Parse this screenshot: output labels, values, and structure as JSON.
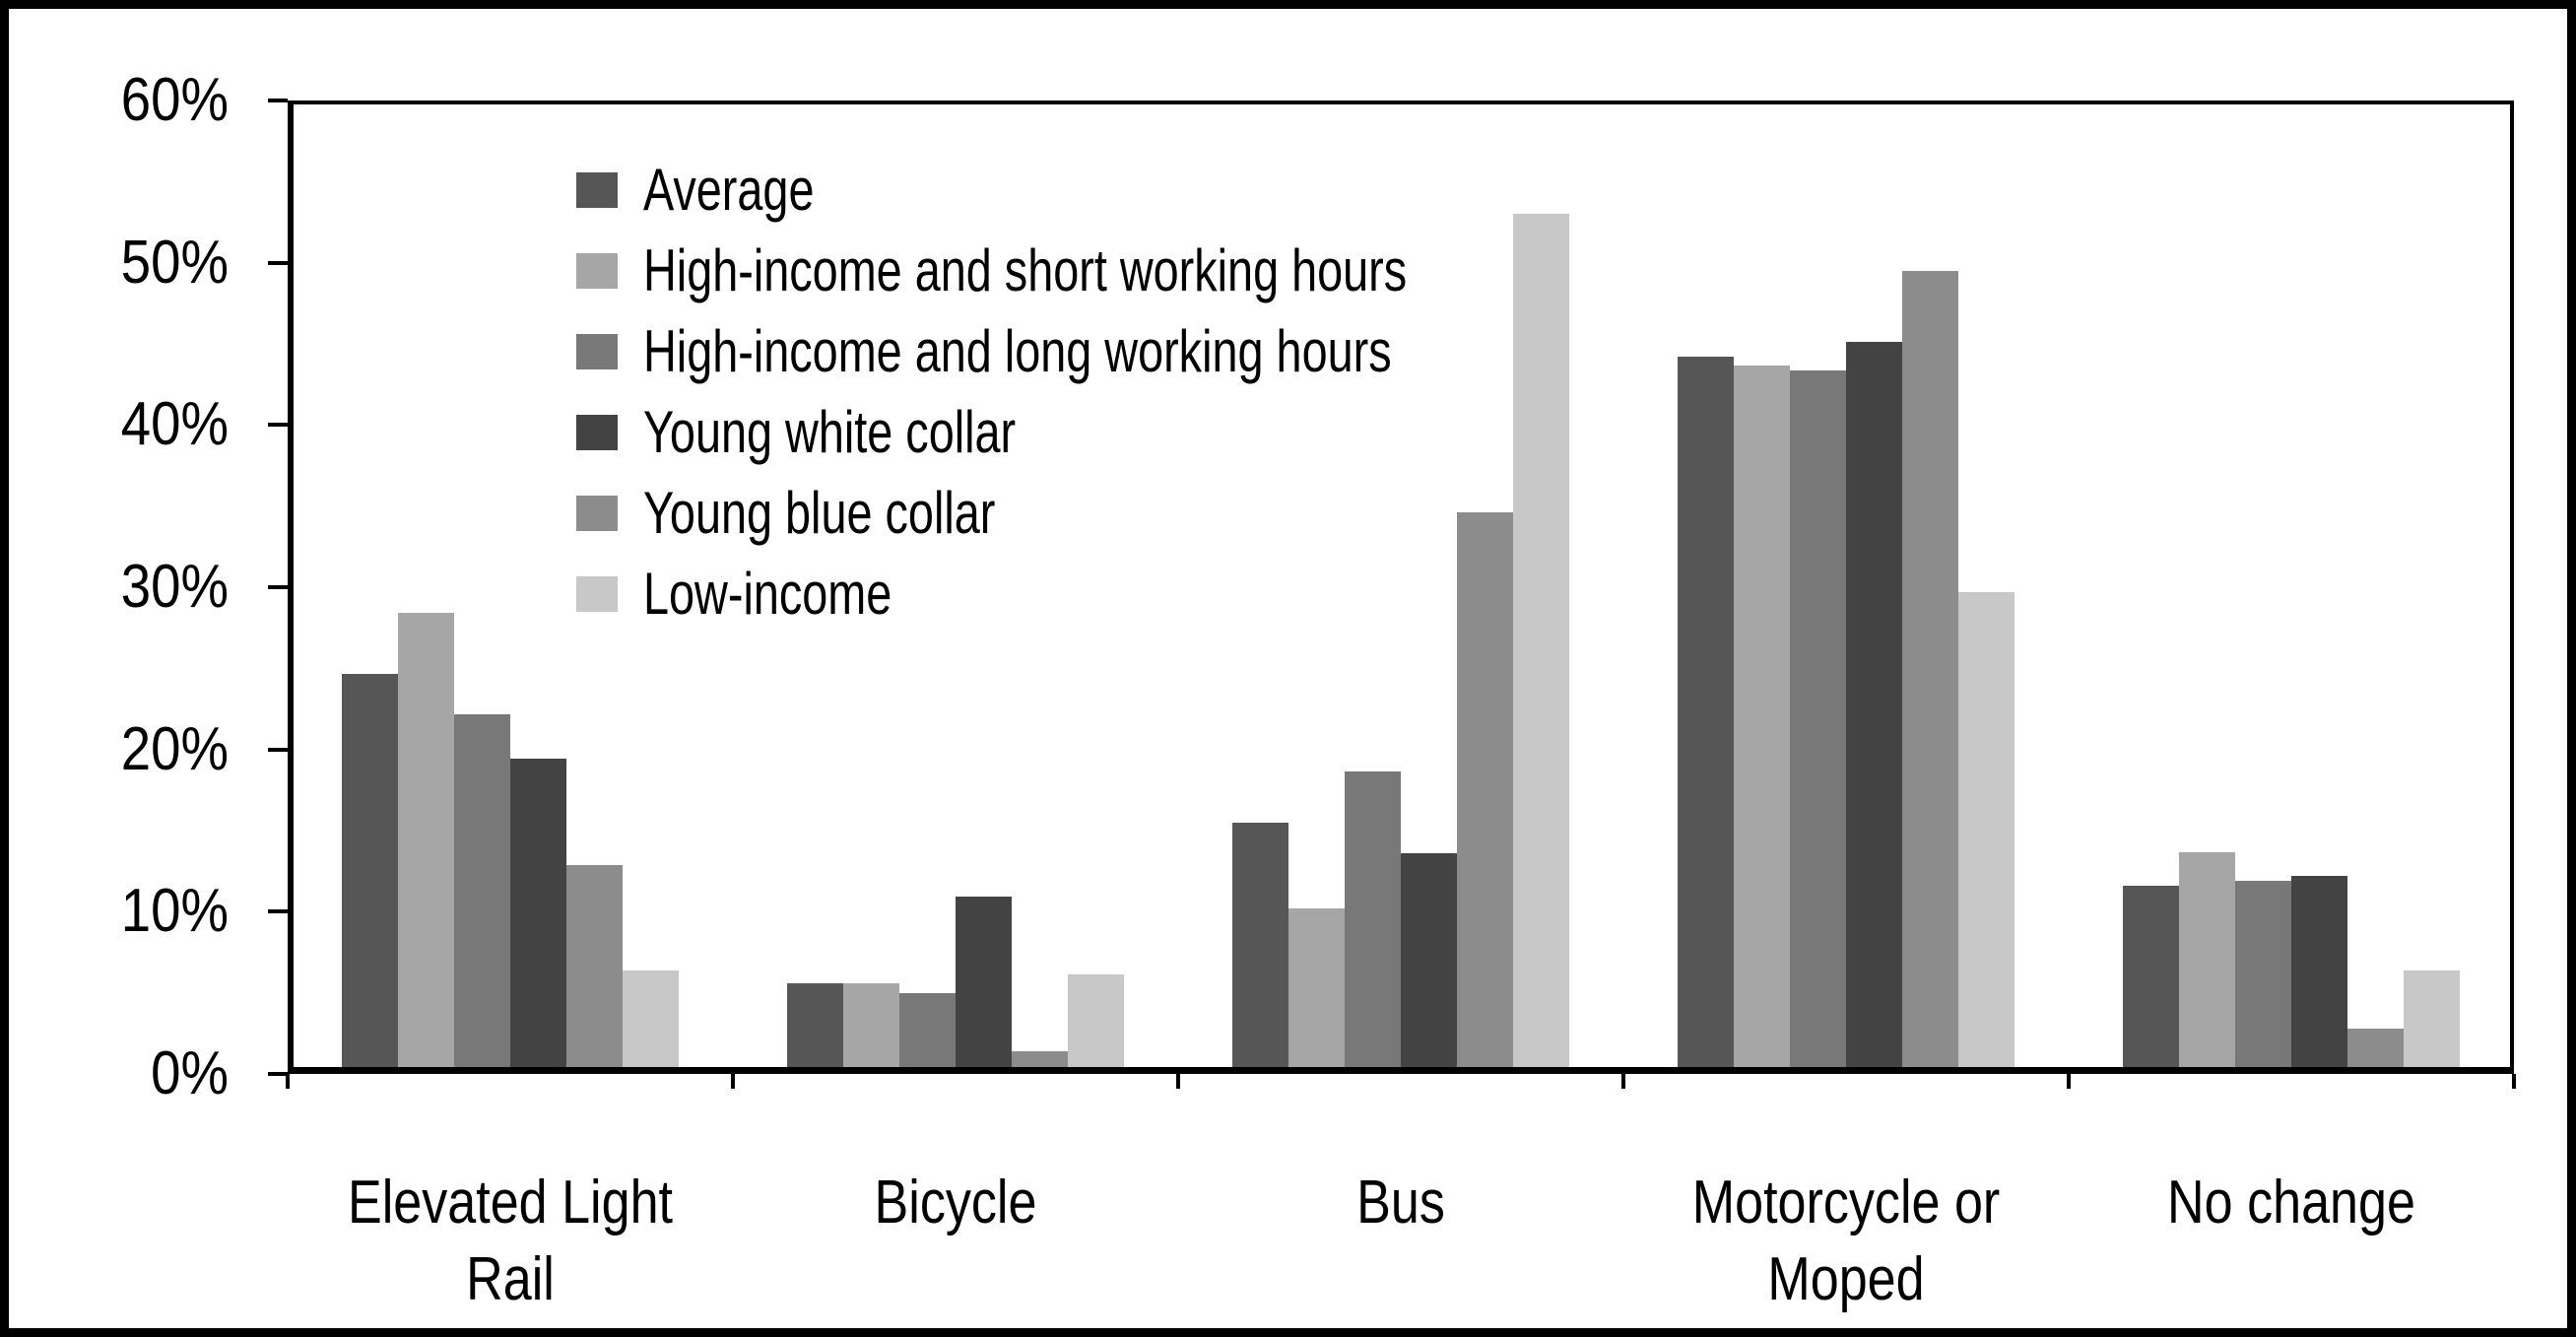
{
  "chart_data": {
    "type": "bar",
    "title": "",
    "xlabel": "",
    "ylabel": "",
    "categories": [
      "Elevated Light Rail",
      "Bicycle",
      "Bus",
      "Motorcycle or Moped",
      "No change"
    ],
    "category_label_lines": [
      [
        "Elevated Light",
        "Rail"
      ],
      [
        "Bicycle"
      ],
      [
        "Bus"
      ],
      [
        "Motorcycle or",
        "Moped"
      ],
      [
        "No change"
      ]
    ],
    "series": [
      {
        "name": "Average",
        "color": "#565656",
        "values": [
          24.5,
          5.2,
          15.2,
          44.3,
          11.3
        ]
      },
      {
        "name": "High-income and short working hours",
        "color": "#a6a6a6",
        "values": [
          28.3,
          5.2,
          9.9,
          43.7,
          13.4
        ]
      },
      {
        "name": "High-income and long working hours",
        "color": "#787878",
        "values": [
          22.0,
          4.6,
          18.4,
          43.4,
          11.6
        ]
      },
      {
        "name": "Young white collar",
        "color": "#434343",
        "values": [
          19.2,
          10.6,
          13.3,
          45.2,
          11.9
        ]
      },
      {
        "name": "Young blue collar",
        "color": "#8c8c8c",
        "values": [
          12.6,
          1.0,
          34.6,
          49.6,
          2.4
        ]
      },
      {
        "name": "Low-income",
        "color": "#c8c8c8",
        "values": [
          6.0,
          5.8,
          53.2,
          29.6,
          6.0
        ]
      }
    ],
    "ylim": [
      0,
      60
    ],
    "ytick_step": 10,
    "ytick_labels": [
      "60%",
      "50%",
      "40%",
      "30%",
      "20%",
      "10%",
      "0%"
    ],
    "grid": false,
    "legend_position": "inside-top-left",
    "axis_color": "#000000",
    "background_color": "#ffffff"
  }
}
